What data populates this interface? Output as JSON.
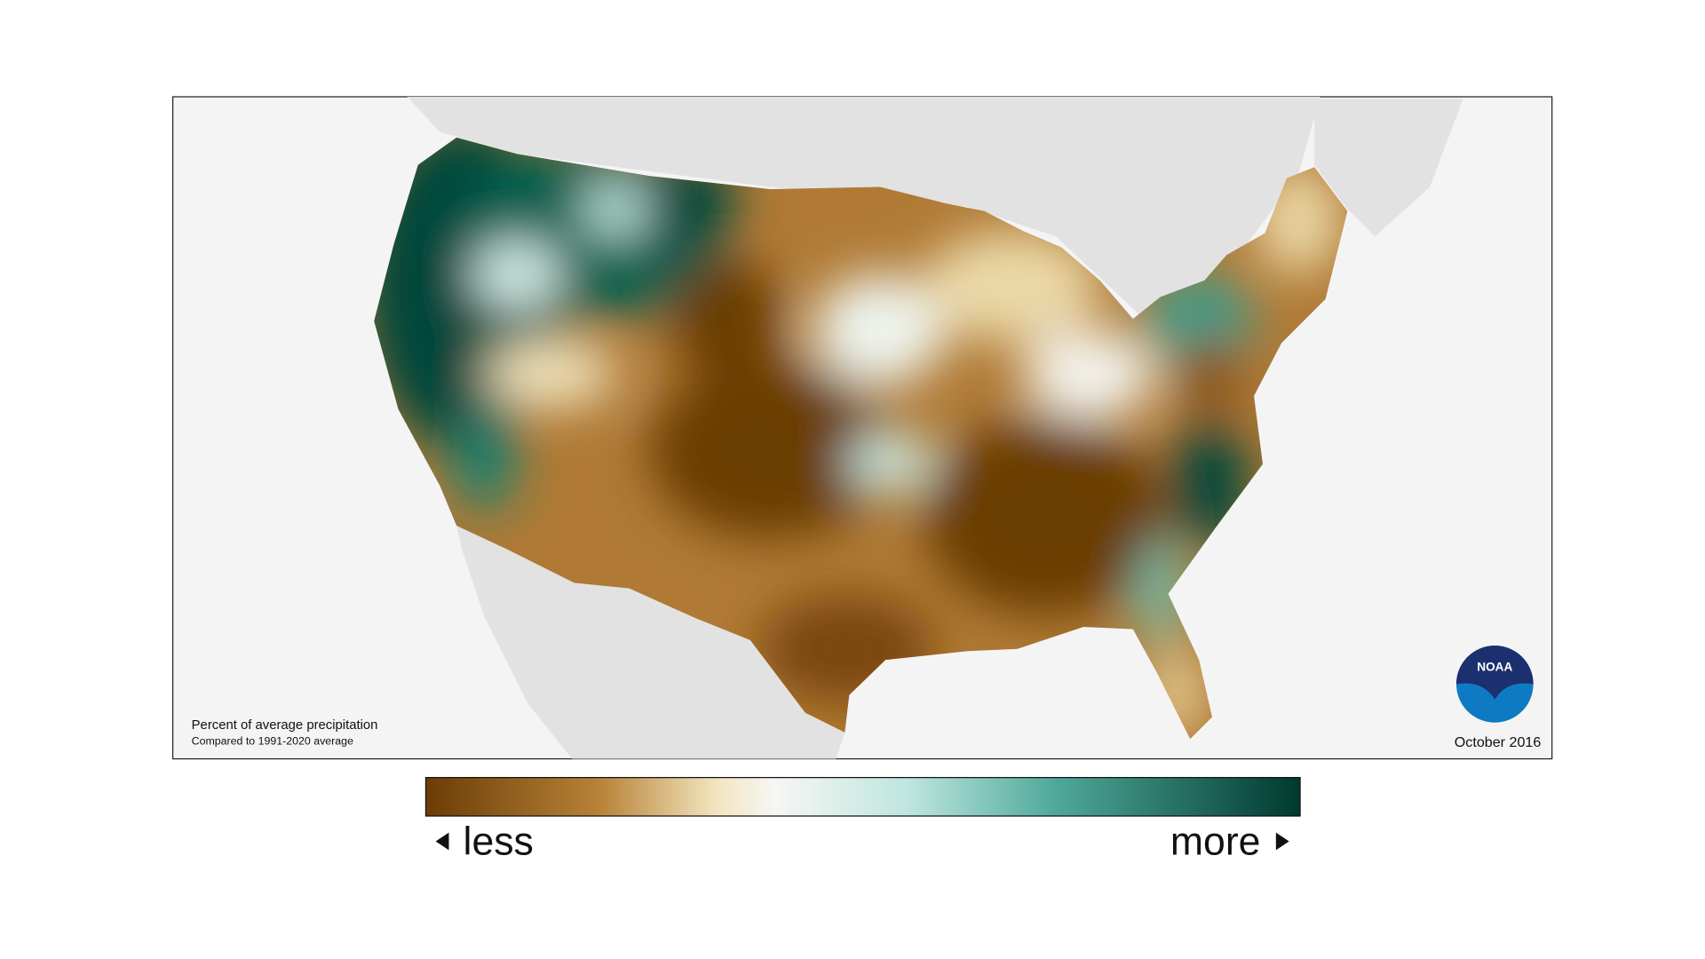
{
  "map": {
    "note_title": "Percent of average precipitation",
    "note_subtitle": "Compared to 1991-2020 average",
    "date": "October 2016",
    "logo_text": "NOAA"
  },
  "legend": {
    "low_label": "less",
    "high_label": "more"
  }
}
